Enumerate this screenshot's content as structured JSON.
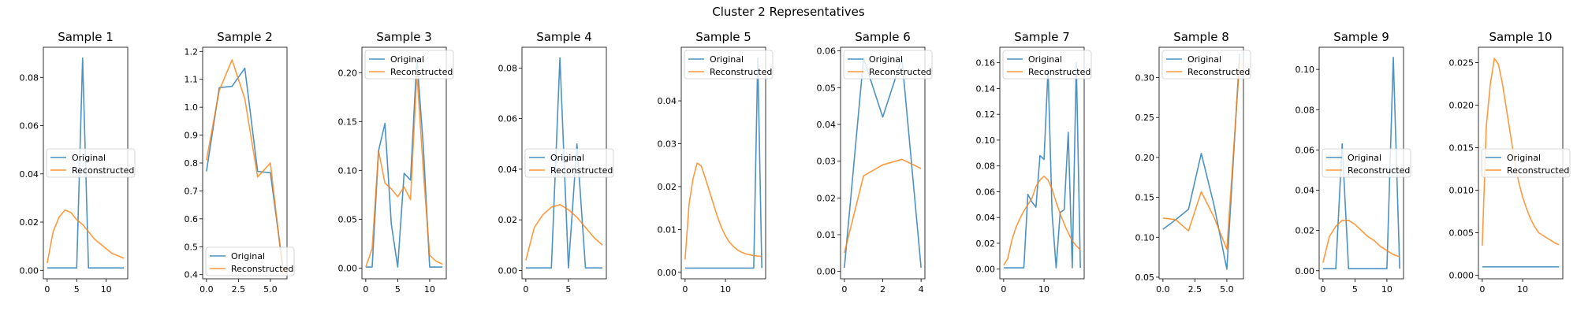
{
  "figure": {
    "suptitle": "Cluster 2 Representatives"
  },
  "colors": {
    "original": "#1f77b4",
    "reconstructed": "#ff7f0e"
  },
  "chart_data": [
    {
      "type": "line",
      "title": "Sample 1",
      "xlim": [
        -0.65,
        13.65
      ],
      "ylim": [
        -0.0035,
        0.0925
      ],
      "xticks": [
        0,
        5,
        10
      ],
      "yticks": [
        0.0,
        0.02,
        0.04,
        0.06,
        0.08
      ],
      "ytick_labels": [
        "0.00",
        "0.02",
        "0.04",
        "0.06",
        "0.08"
      ],
      "legend": "center left",
      "series": [
        {
          "name": "Original",
          "x": [
            0,
            1,
            2,
            3,
            4,
            5,
            6,
            7,
            8,
            9,
            10,
            11,
            12,
            13
          ],
          "values": [
            0.001,
            0.001,
            0.001,
            0.001,
            0.001,
            0.001,
            0.088,
            0.001,
            0.001,
            0.001,
            0.001,
            0.001,
            0.001,
            0.001
          ]
        },
        {
          "name": "Reconstructed",
          "x": [
            0,
            1,
            2,
            3,
            4,
            5,
            6,
            7,
            8,
            9,
            10,
            11,
            12,
            13
          ],
          "values": [
            0.003,
            0.016,
            0.022,
            0.025,
            0.024,
            0.021,
            0.019,
            0.016,
            0.013,
            0.011,
            0.009,
            0.007,
            0.006,
            0.005
          ]
        }
      ]
    },
    {
      "type": "line",
      "title": "Sample 2",
      "xlim": [
        -0.3,
        6.3
      ],
      "ylim": [
        0.385,
        1.215
      ],
      "xticks": [
        0,
        2.5,
        5
      ],
      "xtick_labels": [
        "0.0",
        "2.5",
        "5.0"
      ],
      "yticks": [
        0.4,
        0.5,
        0.6,
        0.7,
        0.8,
        0.9,
        1.0,
        1.1,
        1.2
      ],
      "ytick_labels": [
        "0.4",
        "0.5",
        "0.6",
        "0.7",
        "0.8",
        "0.9",
        "1.0",
        "1.1",
        "1.2"
      ],
      "legend": "lower left",
      "series": [
        {
          "name": "Original",
          "x": [
            0,
            1,
            2,
            3,
            4,
            5,
            6
          ],
          "values": [
            0.77,
            1.07,
            1.075,
            1.14,
            0.77,
            0.765,
            0.42
          ]
        },
        {
          "name": "Reconstructed",
          "x": [
            0,
            1,
            2,
            3,
            4,
            5,
            6
          ],
          "values": [
            0.81,
            1.06,
            1.17,
            1.03,
            0.75,
            0.8,
            0.4
          ]
        }
      ]
    },
    {
      "type": "line",
      "title": "Sample 3",
      "xlim": [
        -0.6,
        12.6
      ],
      "ylim": [
        -0.011,
        0.226
      ],
      "xticks": [
        0,
        5,
        10
      ],
      "yticks": [
        0.0,
        0.05,
        0.1,
        0.15,
        0.2
      ],
      "ytick_labels": [
        "0.00",
        "0.05",
        "0.10",
        "0.15",
        "0.20"
      ],
      "legend": "upper left",
      "series": [
        {
          "name": "Original",
          "x": [
            0,
            1,
            2,
            3,
            4,
            5,
            6,
            7,
            8,
            9,
            10,
            11,
            12
          ],
          "values": [
            0.001,
            0.001,
            0.12,
            0.148,
            0.045,
            0.001,
            0.097,
            0.09,
            0.215,
            0.125,
            0.001,
            0.001,
            0.001
          ]
        },
        {
          "name": "Reconstructed",
          "x": [
            0,
            1,
            2,
            3,
            4,
            5,
            6,
            7,
            8,
            9,
            10,
            11,
            12
          ],
          "values": [
            0.001,
            0.02,
            0.12,
            0.087,
            0.081,
            0.073,
            0.083,
            0.07,
            0.2,
            0.1,
            0.013,
            0.007,
            0.004
          ]
        }
      ]
    },
    {
      "type": "line",
      "title": "Sample 4",
      "xlim": [
        -0.45,
        9.45
      ],
      "ylim": [
        -0.0033,
        0.0882
      ],
      "xticks": [
        0,
        5
      ],
      "yticks": [
        0.0,
        0.02,
        0.04,
        0.06,
        0.08
      ],
      "ytick_labels": [
        "0.00",
        "0.02",
        "0.04",
        "0.06",
        "0.08"
      ],
      "legend": "center left",
      "series": [
        {
          "name": "Original",
          "x": [
            0,
            1,
            2,
            3,
            4,
            5,
            6,
            7,
            8,
            9
          ],
          "values": [
            0.001,
            0.001,
            0.001,
            0.001,
            0.084,
            0.001,
            0.05,
            0.001,
            0.001,
            0.001
          ]
        },
        {
          "name": "Reconstructed",
          "x": [
            0,
            1,
            2,
            3,
            4,
            5,
            6,
            7,
            8,
            9
          ],
          "values": [
            0.004,
            0.017,
            0.022,
            0.025,
            0.026,
            0.024,
            0.021,
            0.017,
            0.013,
            0.01
          ]
        }
      ]
    },
    {
      "type": "line",
      "title": "Sample 5",
      "xlim": [
        -0.95,
        19.95
      ],
      "ylim": [
        -0.0015,
        0.0525
      ],
      "xticks": [
        0,
        10
      ],
      "yticks": [
        0.0,
        0.01,
        0.02,
        0.03,
        0.04
      ],
      "ytick_labels": [
        "0.00",
        "0.01",
        "0.02",
        "0.03",
        "0.04"
      ],
      "legend": "upper left",
      "series": [
        {
          "name": "Original",
          "x": [
            0,
            1,
            2,
            3,
            4,
            5,
            6,
            7,
            8,
            9,
            10,
            11,
            12,
            13,
            14,
            15,
            16,
            17,
            18,
            19
          ],
          "values": [
            0.001,
            0.001,
            0.001,
            0.001,
            0.001,
            0.001,
            0.001,
            0.001,
            0.001,
            0.001,
            0.001,
            0.001,
            0.001,
            0.001,
            0.001,
            0.001,
            0.001,
            0.001,
            0.05,
            0.001
          ]
        },
        {
          "name": "Reconstructed",
          "x": [
            0,
            1,
            2,
            3,
            4,
            5,
            6,
            7,
            8,
            9,
            10,
            11,
            12,
            13,
            14,
            15,
            16,
            17,
            18,
            19
          ],
          "values": [
            0.003,
            0.016,
            0.022,
            0.0255,
            0.0248,
            0.022,
            0.019,
            0.016,
            0.013,
            0.0105,
            0.0085,
            0.007,
            0.006,
            0.0052,
            0.0047,
            0.0043,
            0.0041,
            0.0039,
            0.0038,
            0.0037
          ]
        }
      ]
    },
    {
      "type": "line",
      "title": "Sample 6",
      "xlim": [
        -0.2,
        4.2
      ],
      "ylim": [
        -0.002,
        0.061
      ],
      "xticks": [
        0,
        2,
        4
      ],
      "yticks": [
        0.0,
        0.01,
        0.02,
        0.03,
        0.04,
        0.05,
        0.06
      ],
      "ytick_labels": [
        "0.00",
        "0.01",
        "0.02",
        "0.03",
        "0.04",
        "0.05",
        "0.06"
      ],
      "legend": "upper left",
      "series": [
        {
          "name": "Original",
          "x": [
            0,
            1,
            2,
            3,
            4
          ],
          "values": [
            0.001,
            0.058,
            0.042,
            0.058,
            0.001
          ]
        },
        {
          "name": "Reconstructed",
          "x": [
            0,
            1,
            2,
            3,
            4
          ],
          "values": [
            0.005,
            0.026,
            0.029,
            0.0305,
            0.028
          ]
        }
      ]
    },
    {
      "type": "line",
      "title": "Sample 7",
      "xlim": [
        -0.95,
        19.95
      ],
      "ylim": [
        -0.0075,
        0.172
      ],
      "xticks": [
        0,
        10
      ],
      "yticks": [
        0.0,
        0.02,
        0.04,
        0.06,
        0.08,
        0.1,
        0.12,
        0.14,
        0.16
      ],
      "ytick_labels": [
        "0.00",
        "0.02",
        "0.04",
        "0.06",
        "0.08",
        "0.10",
        "0.12",
        "0.14",
        "0.16"
      ],
      "legend": "upper left",
      "series": [
        {
          "name": "Original",
          "x": [
            0,
            1,
            2,
            3,
            4,
            5,
            6,
            7,
            8,
            9,
            10,
            11,
            12,
            13,
            14,
            15,
            16,
            17,
            18,
            19
          ],
          "values": [
            0.001,
            0.001,
            0.001,
            0.001,
            0.001,
            0.001,
            0.058,
            0.052,
            0.048,
            0.088,
            0.085,
            0.155,
            0.043,
            0.001,
            0.044,
            0.046,
            0.106,
            0.001,
            0.16,
            0.001
          ]
        },
        {
          "name": "Reconstructed",
          "x": [
            0,
            1,
            2,
            3,
            4,
            5,
            6,
            7,
            8,
            9,
            10,
            11,
            12,
            13,
            14,
            15,
            16,
            17,
            18,
            19
          ],
          "values": [
            0.003,
            0.008,
            0.022,
            0.032,
            0.039,
            0.045,
            0.05,
            0.055,
            0.064,
            0.069,
            0.072,
            0.069,
            0.062,
            0.052,
            0.043,
            0.035,
            0.028,
            0.022,
            0.018,
            0.015
          ]
        }
      ]
    },
    {
      "type": "line",
      "title": "Sample 8",
      "xlim": [
        -0.3,
        6.3
      ],
      "ylim": [
        0.048,
        0.338
      ],
      "xticks": [
        0,
        2.5,
        5
      ],
      "xtick_labels": [
        "0.0",
        "2.5",
        "5.0"
      ],
      "yticks": [
        0.05,
        0.1,
        0.15,
        0.2,
        0.25,
        0.3
      ],
      "ytick_labels": [
        "0.05",
        "0.10",
        "0.15",
        "0.20",
        "0.25",
        "0.30"
      ],
      "legend": "upper left",
      "series": [
        {
          "name": "Original",
          "x": [
            0,
            1,
            2,
            3,
            4,
            5,
            6
          ],
          "values": [
            0.11,
            0.122,
            0.135,
            0.205,
            0.14,
            0.06,
            0.33
          ]
        },
        {
          "name": "Reconstructed",
          "x": [
            0,
            1,
            2,
            3,
            4,
            5,
            6
          ],
          "values": [
            0.124,
            0.122,
            0.108,
            0.157,
            0.125,
            0.085,
            0.32
          ]
        }
      ]
    },
    {
      "type": "line",
      "title": "Sample 9",
      "xlim": [
        -0.6,
        12.6
      ],
      "ylim": [
        -0.004,
        0.111
      ],
      "xticks": [
        0,
        5,
        10
      ],
      "yticks": [
        0.0,
        0.02,
        0.04,
        0.06,
        0.08,
        0.1
      ],
      "ytick_labels": [
        "0.00",
        "0.02",
        "0.04",
        "0.06",
        "0.08",
        "0.10"
      ],
      "legend": "center left",
      "series": [
        {
          "name": "Original",
          "x": [
            0,
            1,
            2,
            3,
            4,
            5,
            6,
            7,
            8,
            9,
            10,
            11,
            12
          ],
          "values": [
            0.001,
            0.001,
            0.001,
            0.063,
            0.001,
            0.001,
            0.001,
            0.001,
            0.001,
            0.001,
            0.001,
            0.106,
            0.001
          ]
        },
        {
          "name": "Reconstructed",
          "x": [
            0,
            1,
            2,
            3,
            4,
            5,
            6,
            7,
            8,
            9,
            10,
            11,
            12
          ],
          "values": [
            0.004,
            0.017,
            0.022,
            0.025,
            0.025,
            0.023,
            0.02,
            0.017,
            0.015,
            0.012,
            0.01,
            0.008,
            0.007
          ]
        }
      ]
    },
    {
      "type": "line",
      "title": "Sample 10",
      "xlim": [
        -0.95,
        19.95
      ],
      "ylim": [
        -0.0004,
        0.0268
      ],
      "xticks": [
        0,
        10
      ],
      "yticks": [
        0.0,
        0.005,
        0.01,
        0.015,
        0.02,
        0.025
      ],
      "ytick_labels": [
        "0.000",
        "0.005",
        "0.010",
        "0.015",
        "0.020",
        "0.025"
      ],
      "legend": "center left",
      "series": [
        {
          "name": "Original",
          "x": [
            0,
            1,
            2,
            3,
            4,
            5,
            6,
            7,
            8,
            9,
            10,
            11,
            12,
            13,
            14,
            15,
            16,
            17,
            18,
            19
          ],
          "values": [
            0.001,
            0.001,
            0.001,
            0.001,
            0.001,
            0.001,
            0.001,
            0.001,
            0.001,
            0.001,
            0.001,
            0.001,
            0.001,
            0.001,
            0.001,
            0.001,
            0.001,
            0.001,
            0.001,
            0.001
          ]
        },
        {
          "name": "Reconstructed",
          "x": [
            0,
            1,
            2,
            3,
            4,
            5,
            6,
            7,
            8,
            9,
            10,
            11,
            12,
            13,
            14,
            15,
            16,
            17,
            18,
            19
          ],
          "values": [
            0.0035,
            0.0175,
            0.0225,
            0.0255,
            0.0248,
            0.0225,
            0.0195,
            0.0165,
            0.0135,
            0.011,
            0.0092,
            0.0078,
            0.0066,
            0.0057,
            0.005,
            0.0047,
            0.0044,
            0.0041,
            0.0038,
            0.0036
          ]
        }
      ]
    }
  ]
}
